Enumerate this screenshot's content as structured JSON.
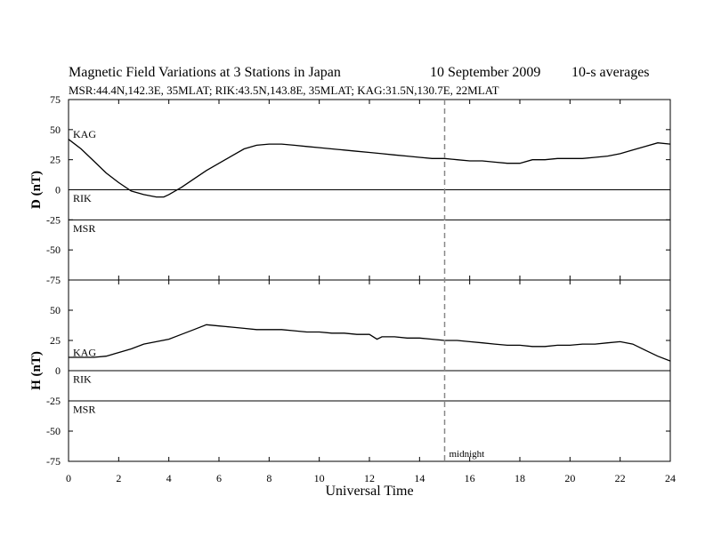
{
  "chart_data": {
    "type": "line",
    "title": "Magnetic Field Variations at 3 Stations in Japan",
    "date": "10 September 2009",
    "averaging": "10-s averages",
    "subtitle": "MSR:44.4N,142.3E, 35MLAT;  RIK:43.5N,143.8E, 35MLAT;  KAG:31.5N,130.7E, 22MLAT",
    "xlabel": "Universal Time",
    "xlim": [
      0,
      24
    ],
    "xticks": [
      0,
      2,
      4,
      6,
      8,
      10,
      12,
      14,
      16,
      18,
      20,
      22,
      24
    ],
    "marker": {
      "x": 15,
      "label": "midnight"
    },
    "panels": [
      {
        "ylabel": "D (nT)",
        "ylim": [
          -75,
          75
        ],
        "yticks": [
          75,
          50,
          25,
          0,
          -25,
          -50,
          -75
        ],
        "baselines": [
          {
            "name": "KAG",
            "y": 25,
            "label_y": 46,
            "drawn": false
          },
          {
            "name": "RIK",
            "y": 0,
            "label_y": -7,
            "drawn": true
          },
          {
            "name": "MSR",
            "y": -25,
            "label_y": -32,
            "drawn": true
          }
        ],
        "series": {
          "name": "KAG",
          "x": [
            0,
            0.5,
            1,
            1.5,
            2,
            2.5,
            3,
            3.5,
            3.8,
            4,
            4.5,
            5,
            5.5,
            6,
            6.5,
            7,
            7.5,
            8,
            8.5,
            9,
            9.5,
            10,
            10.5,
            11,
            11.5,
            12,
            12.5,
            13,
            13.5,
            14,
            14.5,
            15,
            15.5,
            16,
            16.5,
            17,
            17.5,
            18,
            18.5,
            19,
            19.5,
            20,
            20.5,
            21,
            21.5,
            22,
            22.5,
            23,
            23.5,
            24
          ],
          "y": [
            42,
            34,
            24,
            14,
            6,
            -1,
            -4,
            -6,
            -6,
            -4,
            2,
            9,
            16,
            22,
            28,
            34,
            37,
            38,
            38,
            37,
            36,
            35,
            34,
            33,
            32,
            31,
            30,
            29,
            28,
            27,
            26,
            26,
            25,
            24,
            24,
            23,
            22,
            22,
            25,
            25,
            26,
            26,
            26,
            27,
            28,
            30,
            33,
            36,
            39,
            38
          ]
        }
      },
      {
        "ylabel": "H (nT)",
        "ylim": [
          -75,
          75
        ],
        "yticks": [
          75,
          50,
          25,
          0,
          -25,
          -50,
          -75
        ],
        "baselines": [
          {
            "name": "KAG",
            "y": 25,
            "label_y": 15,
            "drawn": false
          },
          {
            "name": "RIK",
            "y": 0,
            "label_y": -7,
            "drawn": true
          },
          {
            "name": "MSR",
            "y": -25,
            "label_y": -32,
            "drawn": true
          }
        ],
        "series": {
          "name": "KAG",
          "x": [
            0,
            0.5,
            1,
            1.5,
            2,
            2.5,
            3,
            3.5,
            4,
            4.5,
            5,
            5.5,
            6,
            6.5,
            7,
            7.5,
            8,
            8.5,
            9,
            9.5,
            10,
            10.5,
            11,
            11.5,
            12,
            12.3,
            12.5,
            13,
            13.5,
            14,
            14.5,
            15,
            15.5,
            16,
            16.5,
            17,
            17.5,
            18,
            18.5,
            19,
            19.5,
            20,
            20.5,
            21,
            21.5,
            22,
            22.5,
            23,
            23.5,
            24
          ],
          "y": [
            11,
            11,
            11,
            12,
            15,
            18,
            22,
            24,
            26,
            30,
            34,
            38,
            37,
            36,
            35,
            34,
            34,
            34,
            33,
            32,
            32,
            31,
            31,
            30,
            30,
            26,
            28,
            28,
            27,
            27,
            26,
            25,
            25,
            24,
            23,
            22,
            21,
            21,
            20,
            20,
            21,
            21,
            22,
            22,
            23,
            24,
            22,
            17,
            12,
            8
          ]
        }
      }
    ]
  }
}
